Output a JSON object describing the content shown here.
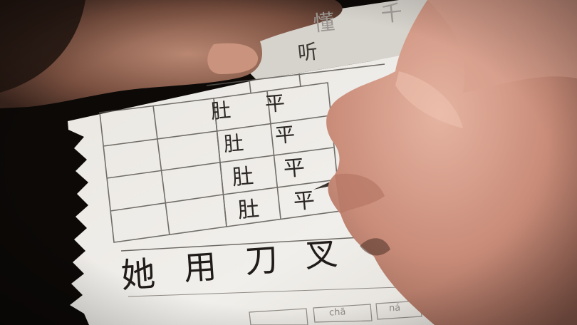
{
  "worksheet": {
    "faded_header": [
      "懂",
      "千"
    ],
    "faded_word": "听",
    "practice_grid": {
      "rows": [
        {
          "left": "肚",
          "right": "平"
        },
        {
          "left": "肚",
          "right": "平"
        },
        {
          "left": "肚",
          "right": "平"
        },
        {
          "left": "肚",
          "right": "平"
        }
      ]
    },
    "handwritten_line": [
      "她",
      "用",
      "刀",
      "叉"
    ],
    "bottom_pinyin": [
      "chā",
      "ná"
    ]
  }
}
